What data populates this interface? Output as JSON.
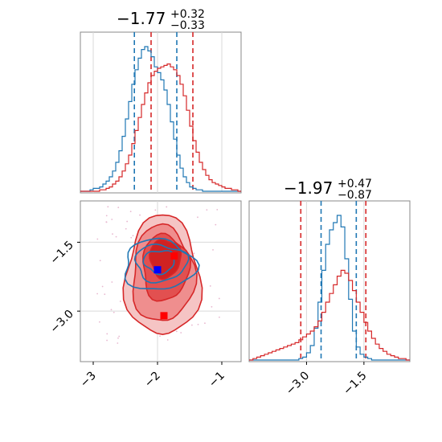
{
  "chart_data": [
    {
      "type": "line",
      "panel": "marginal-x",
      "title": {
        "value": "−1.77",
        "upper": "+0.32",
        "lower": "−0.33"
      },
      "xlim": [
        -3.2,
        -0.7
      ],
      "x": [
        -3.175,
        -3.125,
        -3.075,
        -3.025,
        -2.975,
        -2.925,
        -2.875,
        -2.825,
        -2.775,
        -2.725,
        -2.675,
        -2.625,
        -2.575,
        -2.525,
        -2.475,
        -2.425,
        -2.375,
        -2.325,
        -2.275,
        -2.225,
        -2.175,
        -2.125,
        -2.075,
        -2.025,
        -1.975,
        -1.925,
        -1.875,
        -1.825,
        -1.775,
        -1.725,
        -1.675,
        -1.625,
        -1.575,
        -1.525,
        -1.475,
        -1.425,
        -1.375,
        -1.325,
        -1.275,
        -1.225,
        -1.175,
        -1.125,
        -1.075,
        -1.025,
        -0.975,
        -0.925,
        -0.875,
        -0.825,
        -0.775,
        -0.725
      ],
      "series": [
        {
          "color": "#1f77b4",
          "values": [
            0,
            0,
            0,
            0.01,
            0.02,
            0.02,
            0.03,
            0.05,
            0.07,
            0.1,
            0.14,
            0.2,
            0.28,
            0.38,
            0.5,
            0.62,
            0.74,
            0.84,
            0.92,
            0.98,
            1.0,
            0.97,
            0.93,
            0.86,
            0.82,
            0.77,
            0.7,
            0.6,
            0.48,
            0.36,
            0.25,
            0.16,
            0.1,
            0.06,
            0.03,
            0.02,
            0.01,
            0.01,
            0,
            0,
            0,
            0,
            0,
            0,
            0,
            0,
            0,
            0,
            0,
            0
          ],
          "vlines": [
            -2.36,
            -1.7
          ]
        },
        {
          "color": "#d62728",
          "values": [
            0,
            0,
            0,
            0,
            0,
            0,
            0.01,
            0.01,
            0.02,
            0.03,
            0.05,
            0.07,
            0.1,
            0.14,
            0.19,
            0.25,
            0.33,
            0.42,
            0.51,
            0.6,
            0.68,
            0.75,
            0.8,
            0.83,
            0.85,
            0.86,
            0.87,
            0.88,
            0.86,
            0.84,
            0.8,
            0.74,
            0.66,
            0.56,
            0.45,
            0.35,
            0.27,
            0.2,
            0.15,
            0.11,
            0.08,
            0.06,
            0.05,
            0.04,
            0.03,
            0.02,
            0.02,
            0.01,
            0.01,
            0
          ],
          "vlines": [
            -2.1,
            -1.45
          ]
        }
      ]
    },
    {
      "type": "line",
      "panel": "marginal-y",
      "title": {
        "value": "−1.97",
        "upper": "+0.47",
        "lower": "−0.87"
      },
      "xlim": [
        -4.5,
        -0.3
      ],
      "xticks": [
        -3.0,
        -1.5
      ],
      "xticklabels": [
        "−3.0",
        "−1.5"
      ],
      "x": [
        -4.45,
        -4.35,
        -4.25,
        -4.15,
        -4.05,
        -3.95,
        -3.85,
        -3.75,
        -3.65,
        -3.55,
        -3.45,
        -3.35,
        -3.25,
        -3.15,
        -3.05,
        -2.95,
        -2.85,
        -2.75,
        -2.65,
        -2.55,
        -2.45,
        -2.35,
        -2.25,
        -2.15,
        -2.05,
        -1.95,
        -1.85,
        -1.75,
        -1.65,
        -1.55,
        -1.45,
        -1.35,
        -1.25,
        -1.15,
        -1.05,
        -0.95,
        -0.85,
        -0.75,
        -0.65,
        -0.55,
        -0.45,
        -0.35
      ],
      "series": [
        {
          "color": "#1f77b4",
          "values": [
            0,
            0,
            0,
            0,
            0,
            0,
            0,
            0,
            0,
            0,
            0,
            0,
            0,
            0.01,
            0.02,
            0.05,
            0.1,
            0.22,
            0.4,
            0.62,
            0.8,
            0.9,
            0.95,
            1.0,
            0.92,
            0.7,
            0.42,
            0.2,
            0.09,
            0.04,
            0.02,
            0.01,
            0,
            0,
            0,
            0,
            0,
            0,
            0,
            0,
            0,
            0
          ],
          "vlines": [
            -2.62,
            -1.7
          ]
        },
        {
          "color": "#d62728",
          "values": [
            0,
            0.01,
            0.02,
            0.03,
            0.04,
            0.05,
            0.06,
            0.07,
            0.08,
            0.09,
            0.1,
            0.11,
            0.12,
            0.14,
            0.16,
            0.18,
            0.2,
            0.23,
            0.27,
            0.33,
            0.4,
            0.46,
            0.52,
            0.58,
            0.62,
            0.6,
            0.55,
            0.48,
            0.4,
            0.33,
            0.26,
            0.2,
            0.15,
            0.11,
            0.08,
            0.06,
            0.04,
            0.03,
            0.02,
            0.01,
            0.01,
            0
          ],
          "vlines": [
            -3.15,
            -1.45
          ]
        }
      ]
    },
    {
      "type": "contour",
      "panel": "joint",
      "xlim": [
        -3.2,
        -0.7
      ],
      "ylim": [
        -4.1,
        -0.6
      ],
      "xticks": [
        -3,
        -2,
        -1
      ],
      "xticklabels": [
        "−3",
        "−2",
        "−1"
      ],
      "yticks": [
        -1.5,
        -3.0
      ],
      "yticklabels": [
        "−1.5",
        "−3.0"
      ],
      "grid_x": [
        -2.0
      ],
      "grid_y": [
        -1.5,
        -3.0
      ],
      "red_levels": [
        {
          "fill": "#f5c4c4",
          "cx": -1.92,
          "cy": -2.25,
          "rx": 0.58,
          "ry": 1.3
        },
        {
          "fill": "#ef8e8e",
          "cx": -1.92,
          "cy": -2.2,
          "rx": 0.48,
          "ry": 1.05
        },
        {
          "fill": "#e25050",
          "cx": -1.88,
          "cy": -2.05,
          "rx": 0.36,
          "ry": 0.72
        },
        {
          "fill": "#d02222",
          "cx": -1.88,
          "cy": -1.85,
          "rx": 0.24,
          "ry": 0.42
        }
      ],
      "blue_levels": [
        {
          "cx": -1.98,
          "cy": -2.0,
          "rx": 0.55,
          "ry": 0.55
        },
        {
          "cx": -1.95,
          "cy": -1.95,
          "rx": 0.4,
          "ry": 0.4
        },
        {
          "cx": -1.97,
          "cy": -1.92,
          "rx": 0.24,
          "ry": 0.25
        }
      ],
      "markers": [
        {
          "color": "#0000ff",
          "x": -2.0,
          "y": -2.1
        },
        {
          "color": "#ff0000",
          "x": -1.74,
          "y": -1.8
        },
        {
          "color": "#ff0000",
          "x": -1.9,
          "y": -3.1
        }
      ],
      "scatter_color": "#e8b8d0"
    }
  ]
}
